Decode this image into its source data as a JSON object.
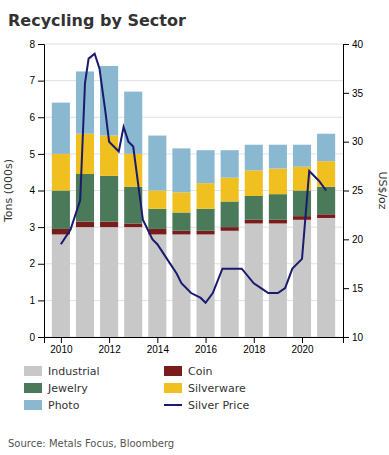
{
  "chart_data": {
    "type": "bar",
    "stacked": true,
    "title": "Recycling by Sector",
    "ylabel": "Tons (000s)",
    "y2label": "US$/oz",
    "source": "Source: Metals Focus, Bloomberg",
    "x": [
      2010,
      2011,
      2012,
      2013,
      2014,
      2015,
      2016,
      2017,
      2018,
      2019,
      2020,
      2021
    ],
    "xlim": [
      2009.3,
      2021.7
    ],
    "xticks": [
      2010,
      2012,
      2014,
      2016,
      2018,
      2020
    ],
    "ylim": [
      0,
      8
    ],
    "yticks": [
      0,
      1,
      2,
      3,
      4,
      5,
      6,
      7,
      8
    ],
    "y2lim": [
      10,
      40
    ],
    "y2ticks": [
      10,
      15,
      20,
      25,
      30,
      35,
      40
    ],
    "grid": true,
    "legend": "bottom",
    "series": [
      {
        "name": "Industrial",
        "color": "#c8c8c8",
        "values": [
          2.8,
          3.0,
          3.0,
          3.0,
          2.8,
          2.8,
          2.8,
          2.9,
          3.1,
          3.1,
          3.2,
          3.25
        ]
      },
      {
        "name": "Coin",
        "color": "#7a1c1c",
        "values": [
          0.15,
          0.15,
          0.15,
          0.1,
          0.15,
          0.1,
          0.1,
          0.1,
          0.1,
          0.1,
          0.1,
          0.1
        ]
      },
      {
        "name": "Jewelry",
        "color": "#4a7a5a",
        "values": [
          1.05,
          1.3,
          1.25,
          1.0,
          0.55,
          0.5,
          0.6,
          0.7,
          0.65,
          0.7,
          0.7,
          0.75
        ]
      },
      {
        "name": "Silverware",
        "color": "#f0c020",
        "values": [
          1.0,
          1.1,
          1.1,
          0.9,
          0.5,
          0.55,
          0.7,
          0.65,
          0.7,
          0.7,
          0.65,
          0.7
        ]
      },
      {
        "name": "Photo",
        "color": "#8ab8d0",
        "values": [
          1.4,
          1.7,
          1.9,
          1.7,
          1.5,
          1.2,
          0.9,
          0.75,
          0.7,
          0.65,
          0.6,
          0.75
        ]
      },
      {
        "name": "Silver Price",
        "type": "line",
        "axis": "y2",
        "color": "#1a1a6e",
        "x": [
          2010,
          2010.4,
          2010.8,
          2011.0,
          2011.15,
          2011.4,
          2011.6,
          2011.85,
          2012.0,
          2012.4,
          2012.6,
          2012.8,
          2013.0,
          2013.4,
          2013.8,
          2014.0,
          2014.4,
          2014.8,
          2015.0,
          2015.4,
          2015.8,
          2016.0,
          2016.3,
          2016.7,
          2017.0,
          2017.5,
          2018.0,
          2018.3,
          2018.6,
          2019.0,
          2019.3,
          2019.6,
          2020.0,
          2020.3,
          2020.7,
          2021.0
        ],
        "values": [
          19.5,
          21.0,
          24.0,
          36.0,
          38.5,
          39.0,
          37.5,
          33.0,
          30.0,
          29.0,
          31.5,
          30.0,
          29.5,
          22.0,
          20.0,
          19.5,
          18.0,
          16.5,
          15.5,
          14.5,
          14.0,
          13.5,
          14.5,
          17.0,
          17.0,
          17.0,
          15.5,
          15.0,
          14.5,
          14.5,
          15.0,
          17.0,
          18.0,
          27.0,
          26.0,
          25.0
        ]
      }
    ]
  }
}
